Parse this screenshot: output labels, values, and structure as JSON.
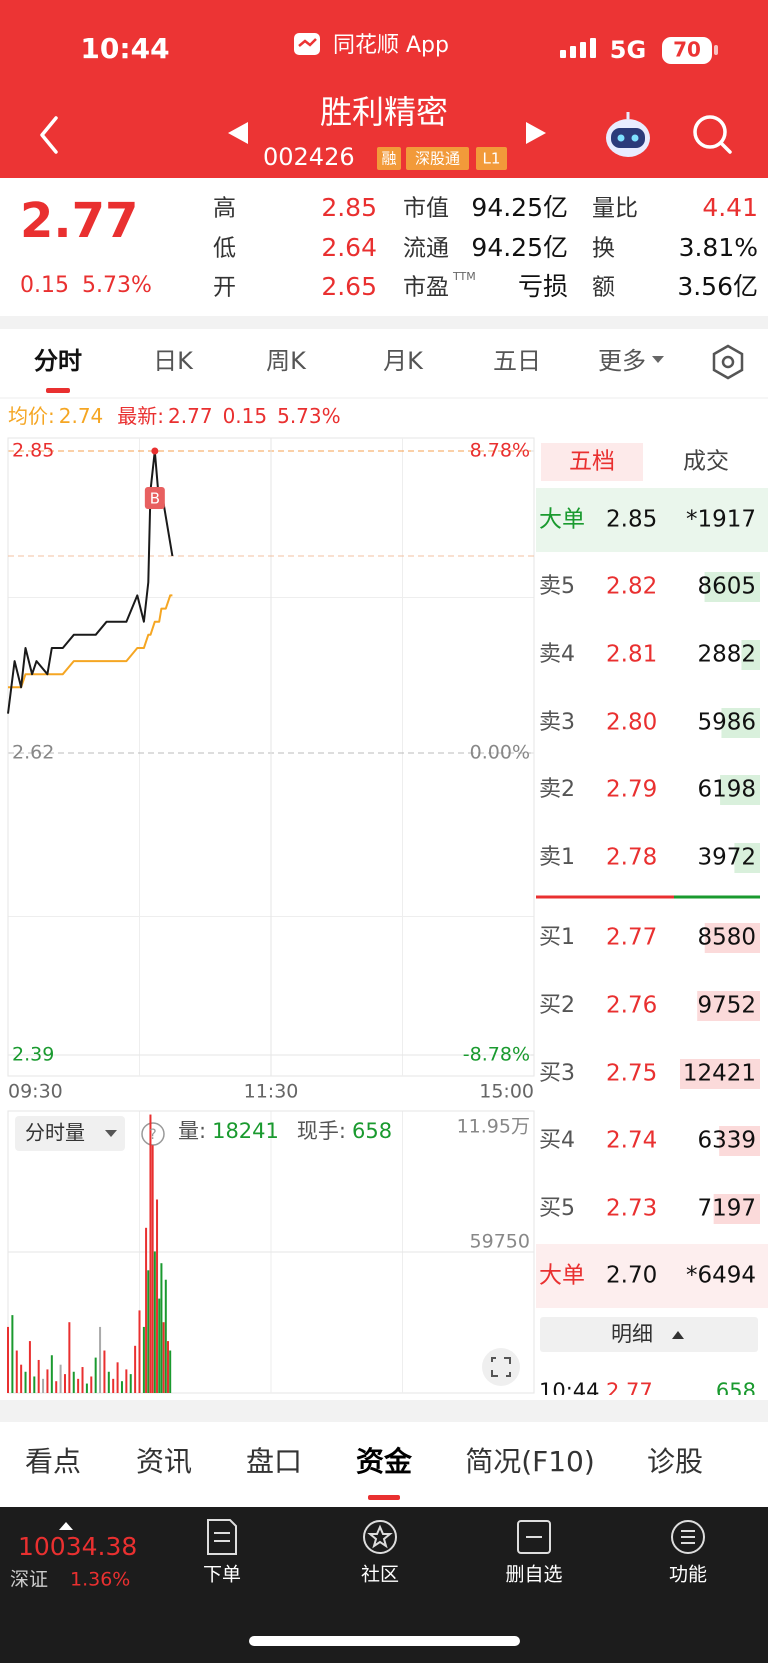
{
  "status_bar": {
    "time": "10:44",
    "app": "同花顺 App",
    "network": "5G",
    "battery": "70"
  },
  "header": {
    "name": "胜利精密",
    "code": "002426",
    "badges": [
      "融",
      "深股通",
      "L1"
    ]
  },
  "quote": {
    "price": "2.77",
    "change": "0.15",
    "change_pct": "5.73%",
    "stats": [
      [
        {
          "label": "高",
          "value": "2.85"
        },
        {
          "label": "低",
          "value": "2.64"
        },
        {
          "label": "开",
          "value": "2.65"
        }
      ],
      [
        {
          "label": "市值",
          "value": "94.25亿"
        },
        {
          "label": "流通",
          "value": "94.25亿"
        },
        {
          "label": "市盈",
          "sup": "TTM",
          "value": "亏损"
        }
      ],
      [
        {
          "label": "量比",
          "value": "4.41"
        },
        {
          "label": "换",
          "value": "3.81%"
        },
        {
          "label": "额",
          "value": "3.56亿"
        }
      ]
    ]
  },
  "tabs": [
    "分时",
    "日K",
    "周K",
    "月K",
    "五日",
    "更多"
  ],
  "chart_data": [
    {
      "type": "line",
      "x": [
        0,
        3,
        6,
        8,
        11,
        13,
        18,
        20,
        25,
        30,
        35,
        40,
        45,
        49,
        54,
        59,
        62,
        64,
        65,
        67,
        69,
        70,
        72,
        74,
        75
      ],
      "xlim": [
        0,
        240
      ],
      "xticks": [
        {
          "value": 0,
          "label": "09:30"
        },
        {
          "value": 120,
          "label": "11:30"
        },
        {
          "value": 240,
          "label": "15:00"
        }
      ],
      "ylim": [
        2.39,
        2.85
      ],
      "yticks": [
        2.39,
        2.62,
        2.85
      ],
      "y2lim": [
        -8.78,
        8.78
      ],
      "y2ticks": [
        {
          "value": -8.78,
          "label": "-8.78%"
        },
        {
          "value": 0,
          "label": "0.00%"
        },
        {
          "value": 8.78,
          "label": "8.78%"
        }
      ],
      "series": [
        {
          "name": "最新:",
          "color": "#1a1a1a",
          "values": [
            2.65,
            2.69,
            2.67,
            2.7,
            2.68,
            2.69,
            2.68,
            2.7,
            2.7,
            2.71,
            2.71,
            2.71,
            2.72,
            2.72,
            2.72,
            2.74,
            2.72,
            2.75,
            2.82,
            2.85,
            2.81,
            2.82,
            2.8,
            2.78,
            2.77
          ]
        },
        {
          "name": "均价:",
          "color": "#f5a623",
          "values": [
            2.67,
            2.67,
            2.67,
            2.68,
            2.68,
            2.68,
            2.68,
            2.68,
            2.68,
            2.69,
            2.69,
            2.69,
            2.69,
            2.69,
            2.69,
            2.7,
            2.7,
            2.71,
            2.71,
            2.72,
            2.72,
            2.73,
            2.73,
            2.74,
            2.74
          ]
        }
      ],
      "legend_values": [
        [
          "2.77",
          "0.15",
          "5.73%"
        ],
        [
          "2.74"
        ]
      ],
      "marker": "B",
      "grid": true
    },
    {
      "type": "bar",
      "title": "分时量",
      "help": "?",
      "info": [
        {
          "label": "量:",
          "value": 18241
        },
        {
          "label": "现手:",
          "value": 658
        }
      ],
      "x": [
        0,
        2,
        4,
        6,
        8,
        10,
        12,
        14,
        16,
        18,
        20,
        22,
        24,
        26,
        28,
        30,
        32,
        34,
        36,
        38,
        40,
        42,
        44,
        46,
        48,
        50,
        52,
        54,
        56,
        58,
        60,
        62,
        63,
        64,
        65,
        66,
        67,
        68,
        69,
        70,
        71,
        72,
        73,
        74
      ],
      "values": [
        28000,
        33000,
        18000,
        12000,
        9000,
        22000,
        7000,
        14000,
        6000,
        10000,
        16000,
        5000,
        12000,
        8000,
        30000,
        9000,
        6000,
        11000,
        4000,
        7000,
        15000,
        28000,
        18000,
        9000,
        6000,
        13000,
        5000,
        10000,
        8000,
        20000,
        35000,
        28000,
        70000,
        52000,
        118000,
        105000,
        60000,
        82000,
        40000,
        55000,
        30000,
        48000,
        22000,
        18000
      ],
      "colors": [
        "#e93030",
        "#1a9a2f",
        "#e93030",
        "#e93030",
        "#1a9a2f",
        "#e93030",
        "#1a9a2f",
        "#e93030",
        "#aaaaaa",
        "#e93030",
        "#1a9a2f",
        "#e93030",
        "#aaaaaa",
        "#e93030",
        "#e93030",
        "#1a9a2f",
        "#e93030",
        "#e93030",
        "#1a9a2f",
        "#e93030",
        "#1a9a2f",
        "#aaaaaa",
        "#e93030",
        "#1a9a2f",
        "#e93030",
        "#e93030",
        "#1a9a2f",
        "#e93030",
        "#1a9a2f",
        "#e93030",
        "#e93030",
        "#1a9a2f",
        "#e93030",
        "#1a9a2f",
        "#e93030",
        "#e93030",
        "#1a9a2f",
        "#e93030",
        "#1a9a2f",
        "#1a9a2f",
        "#e93030",
        "#1a9a2f",
        "#e93030",
        "#1a9a2f"
      ],
      "xlim": [
        0,
        240
      ],
      "ylim": [
        0,
        119500
      ],
      "yticks": [
        59750,
        {
          "value": 119500,
          "label": "11.95万"
        }
      ]
    }
  ],
  "order_book": {
    "tabs": [
      "五档",
      "成交"
    ],
    "big_sell": {
      "label": "大单",
      "price": "2.85",
      "volume": "*1917"
    },
    "asks": [
      {
        "label": "卖5",
        "price": "2.82",
        "volume": 8605
      },
      {
        "label": "卖4",
        "price": "2.81",
        "volume": 2882
      },
      {
        "label": "卖3",
        "price": "2.80",
        "volume": 5986
      },
      {
        "label": "卖2",
        "price": "2.79",
        "volume": 6198
      },
      {
        "label": "卖1",
        "price": "2.78",
        "volume": 3972
      }
    ],
    "bids": [
      {
        "label": "买1",
        "price": "2.77",
        "volume": 8580
      },
      {
        "label": "买2",
        "price": "2.76",
        "volume": 9752
      },
      {
        "label": "买3",
        "price": "2.75",
        "volume": 12421
      },
      {
        "label": "买4",
        "price": "2.74",
        "volume": 6339
      },
      {
        "label": "买5",
        "price": "2.73",
        "volume": 7197
      }
    ],
    "big_buy": {
      "label": "大单",
      "price": "2.70",
      "volume": "*6494"
    },
    "detail": "明细",
    "last_trade": {
      "time": "10:44",
      "price": "2.77",
      "volume": "658"
    }
  },
  "bottom_tabs": [
    "看点",
    "资讯",
    "盘口",
    "资金",
    "简况(F10)",
    "诊股"
  ],
  "bottom_bar": {
    "index_value": "10034.38",
    "index_name": "深证",
    "index_change": "1.36%",
    "actions": [
      "下单",
      "社区",
      "删自选",
      "功能"
    ]
  }
}
